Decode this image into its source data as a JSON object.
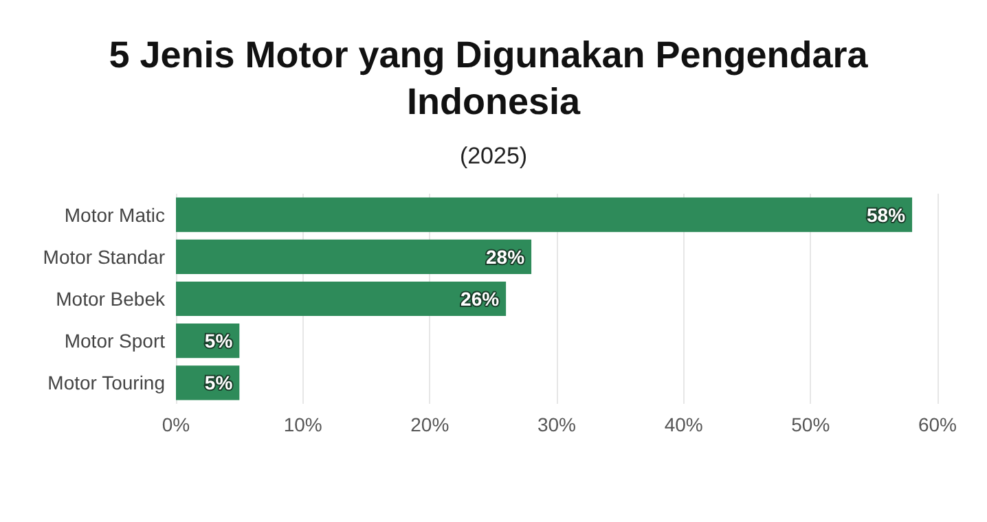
{
  "chart_data": {
    "type": "bar",
    "orientation": "horizontal",
    "title": "5 Jenis Motor yang Digunakan Pengendara Indonesia",
    "subtitle": "(2025)",
    "categories": [
      "Motor Matic",
      "Motor Standar",
      "Motor Bebek",
      "Motor Sport",
      "Motor Touring"
    ],
    "values": [
      58,
      28,
      26,
      5,
      5
    ],
    "value_labels": [
      "58%",
      "28%",
      "26%",
      "5%",
      "5%"
    ],
    "color": "#2e8b5a",
    "xlim": [
      0,
      60
    ],
    "xticks": [
      {
        "value": 0,
        "label": "0%"
      },
      {
        "value": 10,
        "label": "10%"
      },
      {
        "value": 20,
        "label": "20%"
      },
      {
        "value": 30,
        "label": "30%"
      },
      {
        "value": 40,
        "label": "40%"
      },
      {
        "value": 50,
        "label": "50%"
      },
      {
        "value": 60,
        "label": "60%"
      }
    ],
    "grid": "x"
  }
}
